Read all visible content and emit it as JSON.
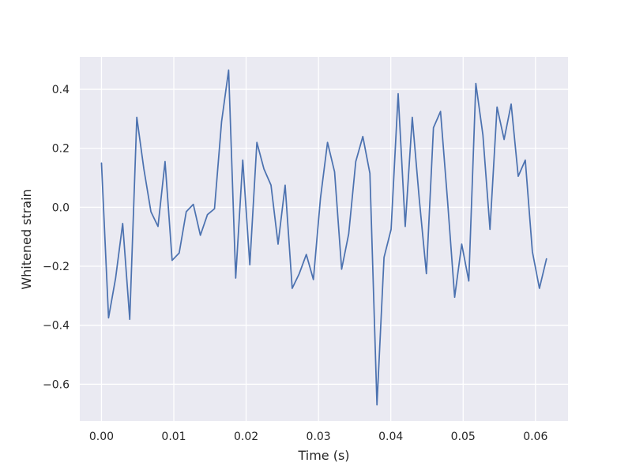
{
  "chart_data": {
    "type": "line",
    "title": "",
    "xlabel": "Time (s)",
    "ylabel": "Whitened strain",
    "xlim": [
      -0.003,
      0.0645
    ],
    "ylim": [
      -0.725,
      0.51
    ],
    "xticks": [
      0.0,
      0.01,
      0.02,
      0.03,
      0.04,
      0.05,
      0.06
    ],
    "xtick_labels": [
      "0.00",
      "0.01",
      "0.02",
      "0.03",
      "0.04",
      "0.05",
      "0.06"
    ],
    "yticks": [
      -0.6,
      -0.4,
      -0.2,
      0.0,
      0.2,
      0.4
    ],
    "ytick_labels": [
      "−0.6",
      "−0.4",
      "−0.2",
      "0.0",
      "0.2",
      "0.4"
    ],
    "grid": true,
    "legend": "none",
    "background": "#eaeaf2",
    "grid_color": "#ffffff",
    "line_color": "#4c72b0",
    "series": [
      {
        "x": [
          0.0,
          0.000977,
          0.001953,
          0.00293,
          0.003906,
          0.004883,
          0.005859,
          0.006836,
          0.007813,
          0.008789,
          0.009766,
          0.010742,
          0.011719,
          0.012695,
          0.013672,
          0.014648,
          0.015625,
          0.016602,
          0.017578,
          0.018555,
          0.019531,
          0.020508,
          0.021484,
          0.022461,
          0.023438,
          0.024414,
          0.025391,
          0.026367,
          0.027344,
          0.02832,
          0.029297,
          0.030273,
          0.03125,
          0.032227,
          0.033203,
          0.03418,
          0.035156,
          0.036133,
          0.037109,
          0.038086,
          0.039063,
          0.040039,
          0.041016,
          0.041992,
          0.042969,
          0.043945,
          0.044922,
          0.045898,
          0.046875,
          0.047852,
          0.048828,
          0.049805,
          0.050781,
          0.051758,
          0.052734,
          0.053711,
          0.054688,
          0.055664,
          0.056641,
          0.057617,
          0.058594,
          0.05957,
          0.060547,
          0.061523
        ],
        "y": [
          0.15,
          -0.375,
          -0.24,
          -0.055,
          -0.38,
          0.305,
          0.13,
          -0.015,
          -0.065,
          0.155,
          -0.18,
          -0.155,
          -0.015,
          0.01,
          -0.095,
          -0.025,
          -0.005,
          0.29,
          0.465,
          -0.24,
          0.16,
          -0.195,
          0.22,
          0.13,
          0.075,
          -0.125,
          0.075,
          -0.275,
          -0.225,
          -0.16,
          -0.245,
          0.03,
          0.22,
          0.12,
          -0.21,
          -0.09,
          0.155,
          0.24,
          0.115,
          -0.67,
          -0.17,
          -0.075,
          0.385,
          -0.065,
          0.305,
          0.025,
          -0.225,
          0.27,
          0.325,
          0.02,
          -0.305,
          -0.125,
          -0.25,
          0.42,
          0.245,
          -0.075,
          0.34,
          0.23,
          0.35,
          0.105,
          0.16,
          -0.15,
          -0.275,
          -0.175
        ]
      }
    ]
  }
}
